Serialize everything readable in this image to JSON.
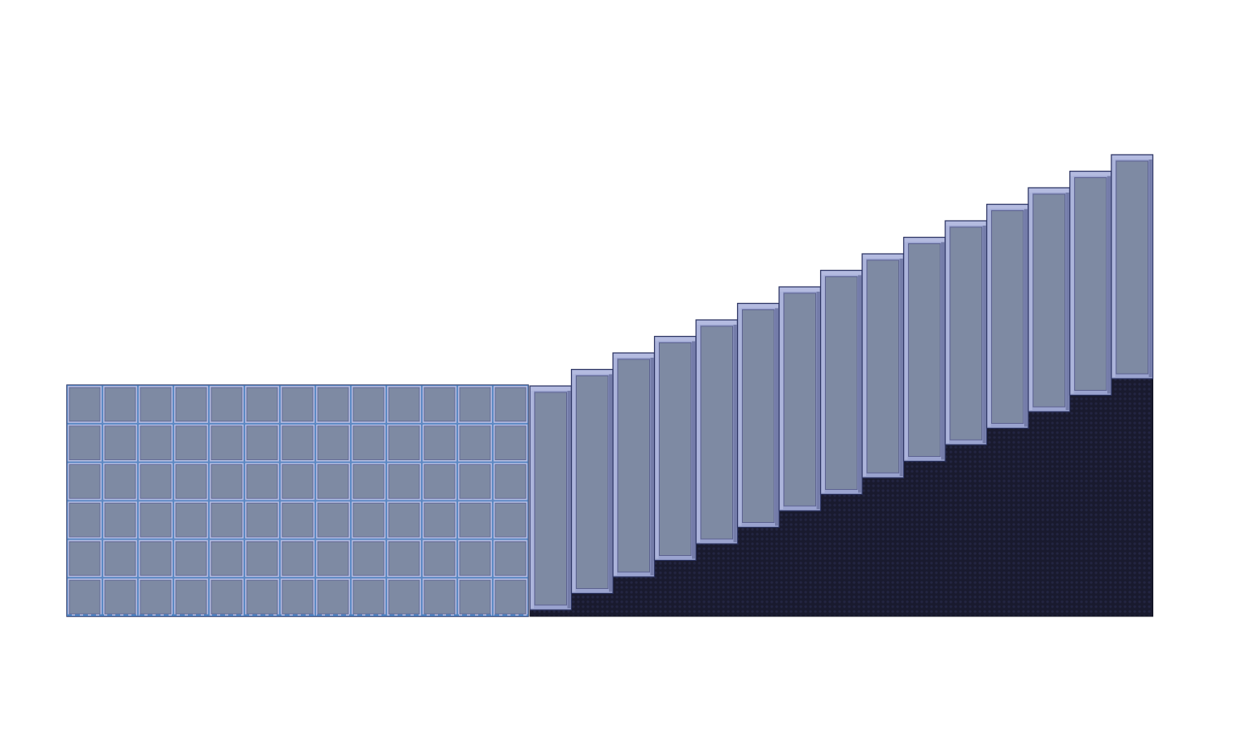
{
  "scene": {
    "description_visible_text": "",
    "left_block": {
      "rows": 6,
      "columns": 13
    },
    "staircase": {
      "steps": 15,
      "direction": "ascending-right"
    },
    "colors": {
      "background": "#ffffff",
      "panel_fill": "#7e8aa3",
      "panel_frame": "#9aa3cf",
      "panel_frame_light": "#b4bbe0",
      "panel_frame_dark": "#5c6290",
      "tile_edge": "#4a80c0",
      "outline": "#2c3462",
      "base_fill": "#191a2e",
      "base_texture": "#232542"
    }
  }
}
